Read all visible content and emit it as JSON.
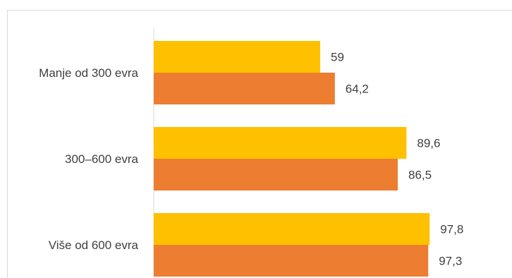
{
  "chart_data": {
    "type": "bar",
    "orientation": "horizontal",
    "categories": [
      "Manje od 300 evra",
      "300–600 evra",
      "Više od 600 evra"
    ],
    "series": [
      {
        "values": [
          59,
          89.6,
          97.8
        ],
        "labels": [
          "59",
          "89,6",
          "97,8"
        ],
        "color": "#FFC000"
      },
      {
        "values": [
          64.2,
          86.5,
          97.3
        ],
        "labels": [
          "64,2",
          "86,5",
          "97,3"
        ],
        "color": "#ED7D31"
      }
    ],
    "xlim": [
      0,
      100
    ],
    "grid": false,
    "legend": "none"
  }
}
